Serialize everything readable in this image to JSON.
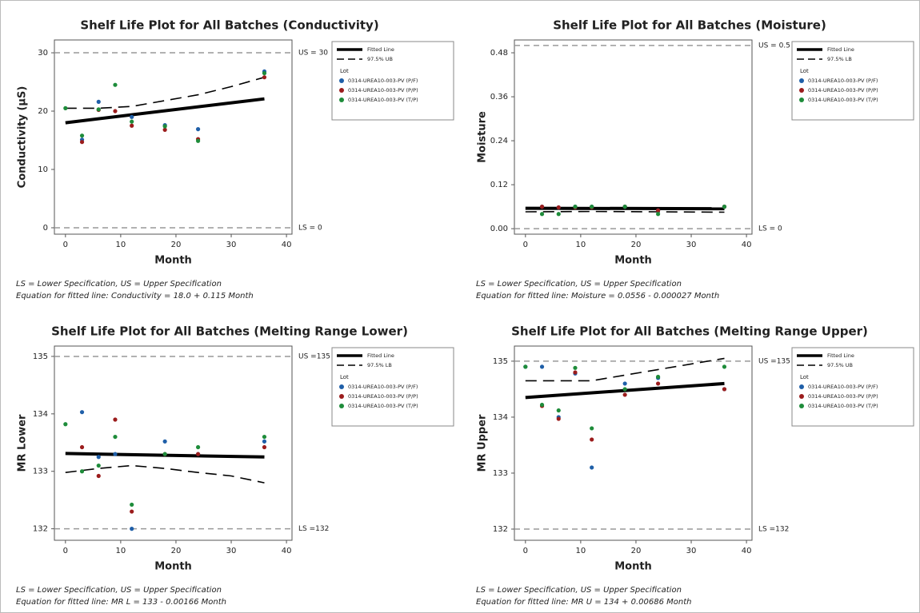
{
  "chart_data": [
    {
      "type": "scatter",
      "title": "Shelf Life Plot for All Batches (Conductivity)",
      "x_label": "Month",
      "y_label": "Conductivity (µS)",
      "xlim": [
        -2,
        41
      ],
      "xticks": [
        0,
        10,
        20,
        30,
        40
      ],
      "ylim": [
        -1.1,
        32.2
      ],
      "yticks": [
        0,
        10,
        20,
        30
      ],
      "reference_lines": [
        {
          "value": 30,
          "label": "US = 30"
        },
        {
          "value": 0,
          "label": "LS = 0"
        }
      ],
      "legend_title": "Lot",
      "series": [
        {
          "name": "Fitted Line",
          "style": "line",
          "color": "#000000",
          "x": [
            0,
            36
          ],
          "values": [
            18.0,
            22.1
          ]
        },
        {
          "name": "97.5% UB",
          "style": "dashed",
          "color": "#000000",
          "x": [
            0,
            6,
            12,
            18,
            24,
            30,
            36
          ],
          "values": [
            20.5,
            20.5,
            20.8,
            21.8,
            22.8,
            24.2,
            25.8
          ]
        },
        {
          "name": "0314-UREA10-003-PV (P/F)",
          "style": "marker",
          "color": "#1f5fa8",
          "x": [
            3,
            6,
            12,
            18,
            24,
            36
          ],
          "values": [
            15.1,
            21.6,
            19.0,
            17.6,
            16.9,
            26.8
          ]
        },
        {
          "name": "0314-UREA10-003-PV (P/P)",
          "style": "marker",
          "color": "#9b1c1c",
          "x": [
            3,
            6,
            9,
            12,
            18,
            24,
            36
          ],
          "values": [
            14.7,
            20.2,
            20.0,
            17.5,
            16.8,
            15.2,
            25.8
          ]
        },
        {
          "name": "0314-UREA10-003-PV (T/P)",
          "style": "marker",
          "color": "#1e8c3a",
          "x": [
            0,
            3,
            6,
            9,
            12,
            18,
            24,
            36
          ],
          "values": [
            20.5,
            15.8,
            20.3,
            24.5,
            18.2,
            17.4,
            14.9,
            26.5
          ]
        }
      ],
      "notes": [
        "LS = Lower Specification, US = Upper Specification",
        "Equation for fitted line: Conductivity = 18.0 + 0.115 Month"
      ]
    },
    {
      "type": "scatter",
      "title": "Shelf Life Plot for All Batches (Moisture)",
      "x_label": "Month",
      "y_label": "Moisture",
      "xlim": [
        -2,
        41
      ],
      "xticks": [
        0,
        10,
        20,
        30,
        40
      ],
      "ylim": [
        -0.015,
        0.515
      ],
      "yticks": [
        {
          "value": 0,
          "label": "0.00"
        },
        0.12,
        0.24,
        0.36,
        0.48
      ],
      "reference_lines": [
        {
          "value": 0.5,
          "label": "US = 0.5"
        },
        {
          "value": 0,
          "label": "LS = 0"
        }
      ],
      "legend_title": "Lot",
      "series": [
        {
          "name": "Fitted Line",
          "style": "line",
          "color": "#000000",
          "x": [
            0,
            36
          ],
          "values": [
            0.0556,
            0.0546
          ]
        },
        {
          "name": "97.5% LB",
          "style": "dashed",
          "color": "#000000",
          "x": [
            0,
            12,
            24,
            36
          ],
          "values": [
            0.046,
            0.047,
            0.046,
            0.045
          ]
        },
        {
          "name": "0314-UREA10-003-PV (P/F)",
          "style": "marker",
          "color": "#1f5fa8",
          "x": [
            3,
            6,
            9,
            12,
            18,
            24,
            36
          ],
          "values": [
            0.06,
            0.058,
            0.06,
            0.06,
            0.06,
            0.05,
            0.06
          ]
        },
        {
          "name": "0314-UREA10-003-PV (P/P)",
          "style": "marker",
          "color": "#9b1c1c",
          "x": [
            3,
            6,
            9,
            12,
            18,
            24,
            36
          ],
          "values": [
            0.06,
            0.058,
            0.058,
            0.058,
            0.06,
            0.05,
            0.06
          ]
        },
        {
          "name": "0314-UREA10-003-PV (T/P)",
          "style": "marker",
          "color": "#1e8c3a",
          "x": [
            3,
            6,
            9,
            12,
            18,
            24,
            36
          ],
          "values": [
            0.04,
            0.04,
            0.06,
            0.06,
            0.06,
            0.04,
            0.06
          ]
        }
      ],
      "notes": [
        "LS = Lower Specification, US = Upper Specification",
        "Equation for fitted line: Moisture = 0.0556 - 0.000027 Month"
      ]
    },
    {
      "type": "scatter",
      "title": "Shelf Life Plot for All Batches (Melting Range Lower)",
      "x_label": "Month",
      "y_label": "MR Lower",
      "xlim": [
        -2,
        41
      ],
      "xticks": [
        0,
        10,
        20,
        30,
        40
      ],
      "ylim": [
        131.8,
        135.18
      ],
      "yticks": [
        132,
        133,
        134,
        135
      ],
      "reference_lines": [
        {
          "value": 135,
          "label": "US =135"
        },
        {
          "value": 132,
          "label": "LS =132"
        }
      ],
      "legend_title": "Lot",
      "series": [
        {
          "name": "Fitted Line",
          "style": "line",
          "color": "#000000",
          "x": [
            0,
            36
          ],
          "values": [
            133.31,
            133.25
          ]
        },
        {
          "name": "97.5% LB",
          "style": "dashed",
          "color": "#000000",
          "x": [
            0,
            6,
            12,
            18,
            24,
            30,
            36
          ],
          "values": [
            132.98,
            133.05,
            133.1,
            133.05,
            132.98,
            132.92,
            132.8
          ]
        },
        {
          "name": "0314-UREA10-003-PV (P/F)",
          "style": "marker",
          "color": "#1f5fa8",
          "x": [
            3,
            6,
            9,
            12,
            18,
            24,
            36
          ],
          "values": [
            134.03,
            133.25,
            133.3,
            132.0,
            133.52,
            133.3,
            133.52
          ]
        },
        {
          "name": "0314-UREA10-003-PV (P/P)",
          "style": "marker",
          "color": "#9b1c1c",
          "x": [
            3,
            6,
            9,
            12,
            18,
            24,
            36
          ],
          "values": [
            133.42,
            132.92,
            133.9,
            132.3,
            133.3,
            133.3,
            133.42
          ]
        },
        {
          "name": "0314-UREA10-003-PV (T/P)",
          "style": "marker",
          "color": "#1e8c3a",
          "x": [
            0,
            3,
            6,
            9,
            12,
            18,
            24,
            36
          ],
          "values": [
            133.82,
            133.0,
            133.1,
            133.6,
            132.42,
            133.3,
            133.42,
            133.6
          ]
        }
      ],
      "notes": [
        "LS = Lower Specification, US = Upper Specification",
        "Equation for fitted line: MR L = 133 - 0.00166 Month"
      ]
    },
    {
      "type": "scatter",
      "title": "Shelf Life Plot for All Batches (Melting Range Upper)",
      "x_label": "Month",
      "y_label": "MR Upper",
      "xlim": [
        -2,
        41
      ],
      "xticks": [
        0,
        10,
        20,
        30,
        40
      ],
      "ylim": [
        131.8,
        135.27
      ],
      "yticks": [
        132,
        133,
        134,
        135
      ],
      "reference_lines": [
        {
          "value": 135,
          "label": "US =135"
        },
        {
          "value": 132,
          "label": "LS =132"
        }
      ],
      "legend_title": "Lot",
      "series": [
        {
          "name": "Fitted Line",
          "style": "line",
          "color": "#000000",
          "x": [
            0,
            36
          ],
          "values": [
            134.35,
            134.6
          ]
        },
        {
          "name": "97.5% UB",
          "style": "dashed",
          "color": "#000000",
          "x": [
            0,
            6,
            12,
            18,
            24,
            30,
            36
          ],
          "values": [
            134.65,
            134.65,
            134.65,
            134.75,
            134.85,
            134.95,
            135.05
          ]
        },
        {
          "name": "0314-UREA10-003-PV (P/F)",
          "style": "marker",
          "color": "#1f5fa8",
          "x": [
            0,
            3,
            6,
            9,
            12,
            18,
            24,
            36
          ],
          "values": [
            134.9,
            134.9,
            134.0,
            134.78,
            133.1,
            134.6,
            134.7,
            134.5
          ]
        },
        {
          "name": "0314-UREA10-003-PV (P/P)",
          "style": "marker",
          "color": "#9b1c1c",
          "x": [
            3,
            6,
            9,
            12,
            18,
            24,
            36
          ],
          "values": [
            134.2,
            133.97,
            134.8,
            133.6,
            134.4,
            134.6,
            134.5
          ]
        },
        {
          "name": "0314-UREA10-003-PV (T/P)",
          "style": "marker",
          "color": "#1e8c3a",
          "x": [
            0,
            3,
            6,
            9,
            12,
            18,
            24,
            36
          ],
          "values": [
            134.9,
            134.22,
            134.12,
            134.88,
            133.8,
            134.5,
            134.72,
            134.9
          ]
        }
      ],
      "notes": [
        "LS = Lower Specification, US = Upper Specification",
        "Equation for fitted line: MR U = 134 + 0.00686 Month"
      ]
    }
  ]
}
